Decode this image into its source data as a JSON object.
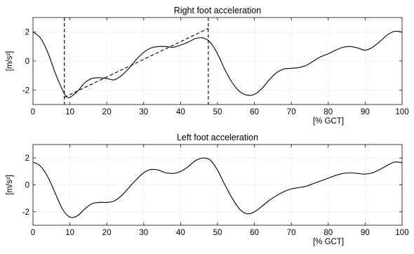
{
  "chart_data": [
    {
      "type": "line",
      "title": "Right foot acceleration",
      "xlabel": "[% GCT]",
      "ylabel": "[m/s²]",
      "xlim": [
        0,
        100
      ],
      "ylim": [
        -3,
        3
      ],
      "xticks": [
        "0",
        "10",
        "20",
        "30",
        "40",
        "50",
        "60",
        "70",
        "80",
        "90",
        "100"
      ],
      "yticks": [
        "2",
        "0",
        "-2"
      ],
      "grid": true,
      "series": [
        {
          "x": [
            0,
            2,
            4,
            6,
            8,
            9,
            10,
            12,
            14,
            16,
            18,
            20,
            22,
            24,
            26,
            28,
            30,
            32,
            34,
            36,
            38,
            40,
            42,
            44,
            46,
            48,
            50,
            52,
            54,
            56,
            58,
            60,
            62,
            64,
            66,
            68,
            70,
            72,
            74,
            76,
            78,
            80,
            82,
            84,
            86,
            88,
            90,
            92,
            94,
            96,
            98,
            100
          ],
          "y": [
            2.0,
            1.6,
            0.6,
            -0.8,
            -2.0,
            -2.45,
            -2.5,
            -2.1,
            -1.5,
            -1.2,
            -1.15,
            -1.2,
            -1.3,
            -1.0,
            -0.5,
            0.1,
            0.6,
            0.9,
            1.0,
            1.0,
            0.95,
            1.1,
            1.3,
            1.55,
            1.6,
            1.3,
            0.5,
            -0.6,
            -1.5,
            -2.1,
            -2.35,
            -2.3,
            -1.9,
            -1.3,
            -0.8,
            -0.55,
            -0.5,
            -0.45,
            -0.3,
            0.0,
            0.3,
            0.5,
            0.75,
            0.95,
            1.0,
            0.9,
            0.75,
            0.95,
            1.35,
            1.8,
            2.05,
            2.0
          ]
        }
      ],
      "annotations": {
        "vlines_x": [
          8.5,
          47.5
        ],
        "dashed_segment": {
          "x": [
            8.5,
            47.5
          ],
          "y": [
            -2.5,
            2.25
          ]
        }
      }
    },
    {
      "type": "line",
      "title": "Left foot acceleration",
      "xlabel": "[% GCT]",
      "ylabel": "[m/s²]",
      "xlim": [
        0,
        100
      ],
      "ylim": [
        -3,
        3
      ],
      "xticks": [
        "0",
        "10",
        "20",
        "30",
        "40",
        "50",
        "60",
        "70",
        "80",
        "90",
        "100"
      ],
      "yticks": [
        "2",
        "0",
        "-2"
      ],
      "grid": true,
      "series": [
        {
          "x": [
            0,
            2,
            4,
            6,
            8,
            10,
            12,
            14,
            16,
            18,
            20,
            22,
            24,
            26,
            28,
            30,
            32,
            34,
            36,
            38,
            40,
            42,
            44,
            46,
            48,
            50,
            52,
            54,
            56,
            58,
            60,
            62,
            64,
            66,
            68,
            70,
            72,
            74,
            76,
            78,
            80,
            82,
            84,
            86,
            88,
            90,
            92,
            94,
            96,
            98,
            100
          ],
          "y": [
            1.7,
            1.4,
            0.6,
            -0.6,
            -1.8,
            -2.4,
            -2.3,
            -1.8,
            -1.4,
            -1.3,
            -1.3,
            -1.2,
            -0.8,
            -0.2,
            0.4,
            0.9,
            1.15,
            1.1,
            0.9,
            0.85,
            1.0,
            1.35,
            1.8,
            2.0,
            1.85,
            1.1,
            0.0,
            -1.0,
            -1.8,
            -2.15,
            -2.0,
            -1.6,
            -1.15,
            -0.8,
            -0.5,
            -0.3,
            -0.2,
            -0.1,
            0.1,
            0.3,
            0.5,
            0.7,
            0.85,
            0.9,
            0.85,
            0.8,
            0.9,
            1.15,
            1.45,
            1.7,
            1.65
          ]
        }
      ]
    }
  ]
}
